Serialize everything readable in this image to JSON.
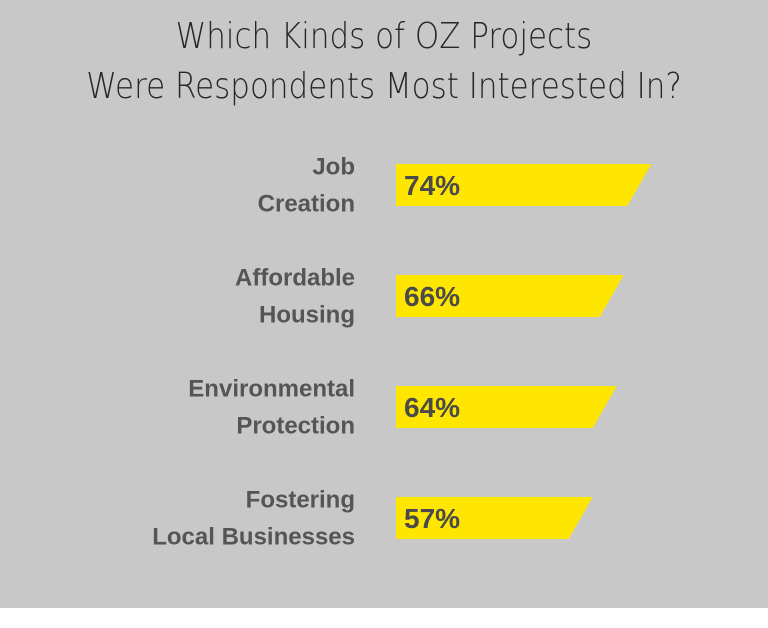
{
  "chart_data": {
    "type": "bar",
    "orientation": "horizontal",
    "title": [
      "Which Kinds of OZ Projects",
      "Were Respondents Most Interested In?"
    ],
    "categories": [
      [
        "Job",
        "Creation"
      ],
      [
        "Affordable",
        "Housing"
      ],
      [
        "Environmental",
        "Protection"
      ],
      [
        "Fostering",
        "Local Businesses"
      ]
    ],
    "values": [
      74,
      66,
      64,
      57
    ],
    "value_labels": [
      "74%",
      "66%",
      "64%",
      "57%"
    ],
    "unit": "%",
    "colors": {
      "bar": "#ffe600",
      "background": "#c8c8c8",
      "label": "#555555",
      "value": "#4a4a4a",
      "title": "#262626"
    },
    "grid": false,
    "legend": "none"
  }
}
